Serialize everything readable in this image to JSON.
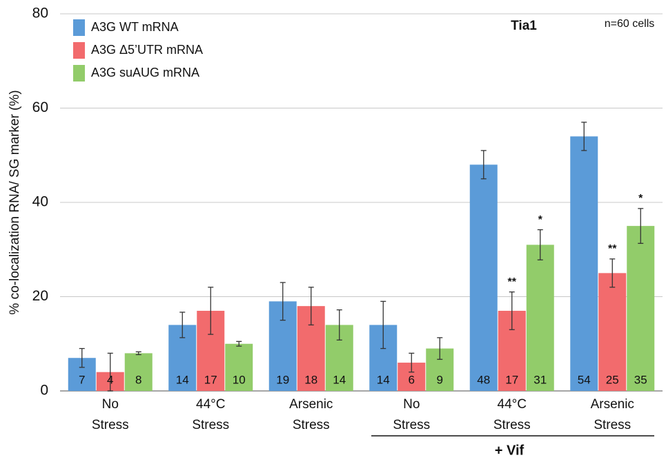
{
  "chart_data": {
    "type": "bar",
    "title": "Tia1",
    "subtitle": "n=60 cells",
    "y_label": "% co-localization RNA/ SG marker (%)",
    "group_label": "+ Vif",
    "categories": [
      "No Stress",
      "44°C Stress",
      "Arsenic Stress",
      "No Stress",
      "44°C Stress",
      "Arsenic Stress"
    ],
    "series": [
      {
        "name": "A3G WT mRNA",
        "color": "#5b9bd8",
        "values": [
          7,
          14,
          19,
          14,
          48,
          54
        ],
        "errors": [
          2,
          2.7,
          4,
          5,
          3,
          3
        ]
      },
      {
        "name": "A3G Δ5’UTR mRNA",
        "color": "#f26b6d",
        "values": [
          4,
          17,
          18,
          6,
          17,
          25
        ],
        "errors": [
          4,
          5,
          4,
          2,
          4,
          3
        ]
      },
      {
        "name": "A3G suAUG mRNA",
        "color": "#92cc6a",
        "values": [
          8,
          10,
          14,
          9,
          31,
          35
        ],
        "errors": [
          0.3,
          0.5,
          3.2,
          2.3,
          3.2,
          3.7
        ]
      }
    ],
    "annotations": [
      "**",
      "*",
      "**",
      "*"
    ],
    "ylim": [
      0,
      80
    ],
    "yticks": [
      0,
      20,
      40,
      60,
      80
    ],
    "grid": true,
    "legend": "top-left"
  }
}
